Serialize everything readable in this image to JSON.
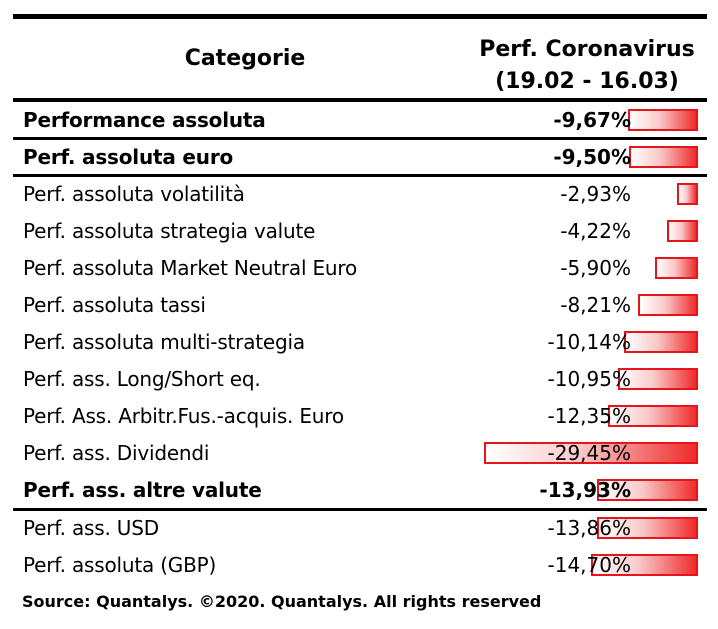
{
  "chart_data": {
    "type": "bar",
    "headers": {
      "category": "Categorie",
      "perf_line1": "Perf. Coronavirus",
      "perf_line2": "(19.02 - 16.03)"
    },
    "rows": [
      {
        "label": "Performance assoluta",
        "value": -9.67,
        "value_text": "-9,67%",
        "bold": true
      },
      {
        "label": "Perf. assoluta euro",
        "value": -9.5,
        "value_text": "-9,50%",
        "bold": true
      },
      {
        "label": "Perf. assoluta volatilità",
        "value": -2.93,
        "value_text": "-2,93%",
        "bold": false
      },
      {
        "label": "Perf. assoluta strategia valute",
        "value": -4.22,
        "value_text": "-4,22%",
        "bold": false
      },
      {
        "label": "Perf. assoluta Market Neutral Euro",
        "value": -5.9,
        "value_text": "-5,90%",
        "bold": false
      },
      {
        "label": "Perf. assoluta tassi",
        "value": -8.21,
        "value_text": "-8,21%",
        "bold": false
      },
      {
        "label": "Perf. assoluta multi-strategia",
        "value": -10.14,
        "value_text": "-10,14%",
        "bold": false
      },
      {
        "label": "Perf. ass. Long/Short eq.",
        "value": -10.95,
        "value_text": "-10,95%",
        "bold": false
      },
      {
        "label": "Perf. Ass. Arbitr.Fus.-acquis. Euro",
        "value": -12.35,
        "value_text": "-12,35%",
        "bold": false
      },
      {
        "label": "Perf. ass. Dividendi",
        "value": -29.45,
        "value_text": "-29,45%",
        "bold": false
      },
      {
        "label": "Perf. ass. altre valute",
        "value": -13.93,
        "value_text": "-13,93%",
        "bold": true
      },
      {
        "label": "Perf. ass. USD",
        "value": -13.86,
        "value_text": "-13,86%",
        "bold": false
      },
      {
        "label": "Perf. assoluta (GBP)",
        "value": -14.7,
        "value_text": "-14,70%",
        "bold": false
      }
    ],
    "bar_color": "#e8141c",
    "source": "Source: Quantalys. ©2020. Quantalys. All rights reserved"
  }
}
